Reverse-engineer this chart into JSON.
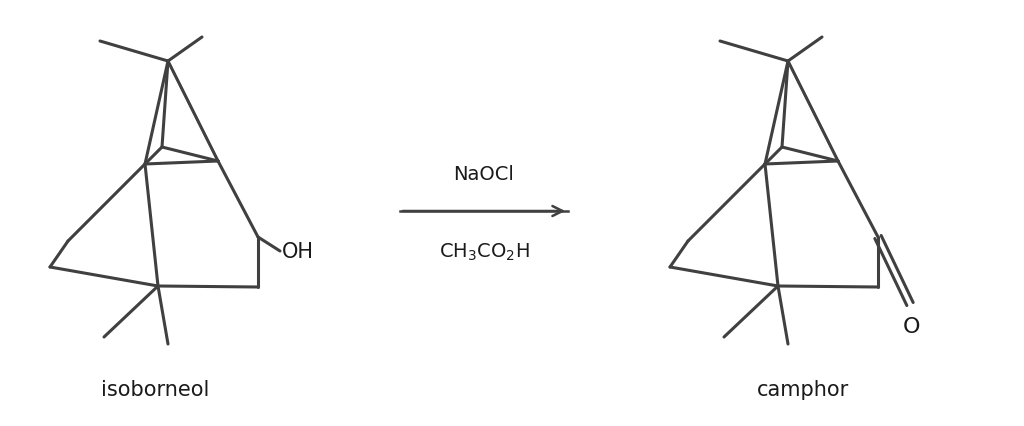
{
  "background_color": "#ffffff",
  "line_color": "#404040",
  "line_width": 2.2,
  "text_color": "#1a1a1a",
  "label_isoborneol": "isoborneol",
  "label_camphor": "camphor",
  "reagent1": "NaOCl",
  "reagent2": "CH$_3$CO$_2$H",
  "label_OH": "OH",
  "label_O": "O",
  "figsize": [
    10.24,
    4.27
  ],
  "dpi": 100
}
